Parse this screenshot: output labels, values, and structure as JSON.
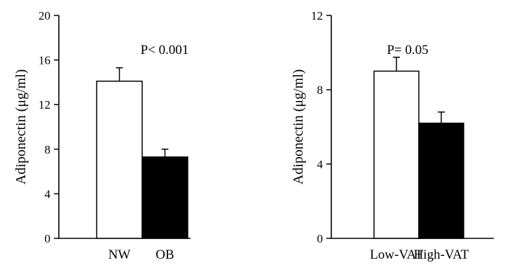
{
  "chart_data": [
    {
      "type": "bar",
      "ylabel": "Adiponectin (μg/ml)",
      "annotation": "P< 0.001",
      "categories": [
        "NW",
        "OB"
      ],
      "values": [
        14.1,
        7.3
      ],
      "errors": [
        1.2,
        0.7
      ],
      "bar_colors": [
        "#ffffff",
        "#000000"
      ],
      "ylim": [
        0,
        20
      ],
      "yticks": [
        0,
        4,
        8,
        12,
        16,
        20
      ],
      "ytick_labels": [
        "0",
        "4",
        "8",
        "12",
        "16",
        "20"
      ]
    },
    {
      "type": "bar",
      "ylabel": "Adiponectin (μg/ml)",
      "annotation": "P= 0.05",
      "categories": [
        "Low-VAT",
        "High-VAT"
      ],
      "values": [
        9.0,
        6.2
      ],
      "errors": [
        0.75,
        0.6
      ],
      "bar_colors": [
        "#ffffff",
        "#000000"
      ],
      "ylim": [
        0,
        12
      ],
      "yticks": [
        0,
        4,
        8,
        12
      ],
      "ytick_labels": [
        "0",
        "4",
        "8",
        "12"
      ]
    }
  ]
}
